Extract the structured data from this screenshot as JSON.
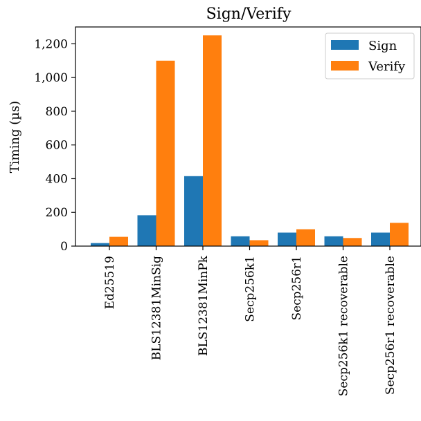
{
  "chart_data": {
    "type": "bar",
    "title": "Sign/Verify",
    "xlabel": "",
    "ylabel": "Timing (µs)",
    "ylim": [
      0,
      1300
    ],
    "yticks": [
      0,
      200,
      400,
      600,
      800,
      1000,
      1200
    ],
    "ytick_labels": [
      "0",
      "200",
      "400",
      "600",
      "800",
      "1,000",
      "1,200"
    ],
    "categories": [
      "Ed25519",
      "BLS12381MinSig",
      "BLS12381MinPk",
      "Secp256k1",
      "Secp256r1",
      "Secp256k1 recoverable",
      "Secp256r1 recoverable"
    ],
    "series": [
      {
        "name": "Sign",
        "color": "#1f77b4",
        "values": [
          18,
          183,
          415,
          58,
          80,
          58,
          80
        ]
      },
      {
        "name": "Verify",
        "color": "#ff7f0e",
        "values": [
          55,
          1100,
          1250,
          35,
          100,
          48,
          138
        ]
      }
    ],
    "legend_position": "top-right",
    "grid": false
  }
}
